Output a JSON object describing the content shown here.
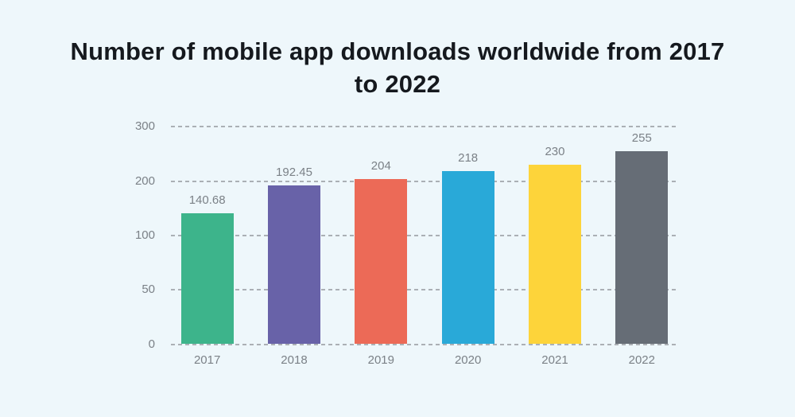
{
  "title": "Number of mobile app downloads worldwide from 2017 to 2022",
  "colors": {
    "background": "#eef7fb",
    "title_text": "#15191e",
    "axis_text": "#7b8187",
    "value_label_text": "#7b8187",
    "gridline": "#abb0b5",
    "bar_green": "#3db48b",
    "bar_purple": "#6862a8",
    "bar_red": "#ec6a57",
    "bar_blue": "#29a9d8",
    "bar_yellow": "#fdd43a",
    "bar_gray": "#666d76"
  },
  "chart_data": {
    "type": "bar",
    "title": "Number of mobile app downloads worldwide from 2017 to 2022",
    "categories": [
      "2017",
      "2018",
      "2019",
      "2020",
      "2021",
      "2022"
    ],
    "values": [
      140.68,
      192.45,
      204,
      218,
      230,
      255
    ],
    "value_labels": [
      "140.68",
      "192.45",
      "204",
      "218",
      "230",
      "255"
    ],
    "bar_colors": [
      "#3db48b",
      "#6862a8",
      "#ec6a57",
      "#29a9d8",
      "#fdd43a",
      "#666d76"
    ],
    "y_ticks": [
      0,
      50,
      100,
      200,
      300
    ],
    "y_tick_labels": [
      "0",
      "50",
      "100",
      "200",
      "300"
    ],
    "y_tick_spacing": "equal",
    "grid": "horizontal-dashed",
    "legend": "none",
    "xlabel": "",
    "ylabel": ""
  }
}
